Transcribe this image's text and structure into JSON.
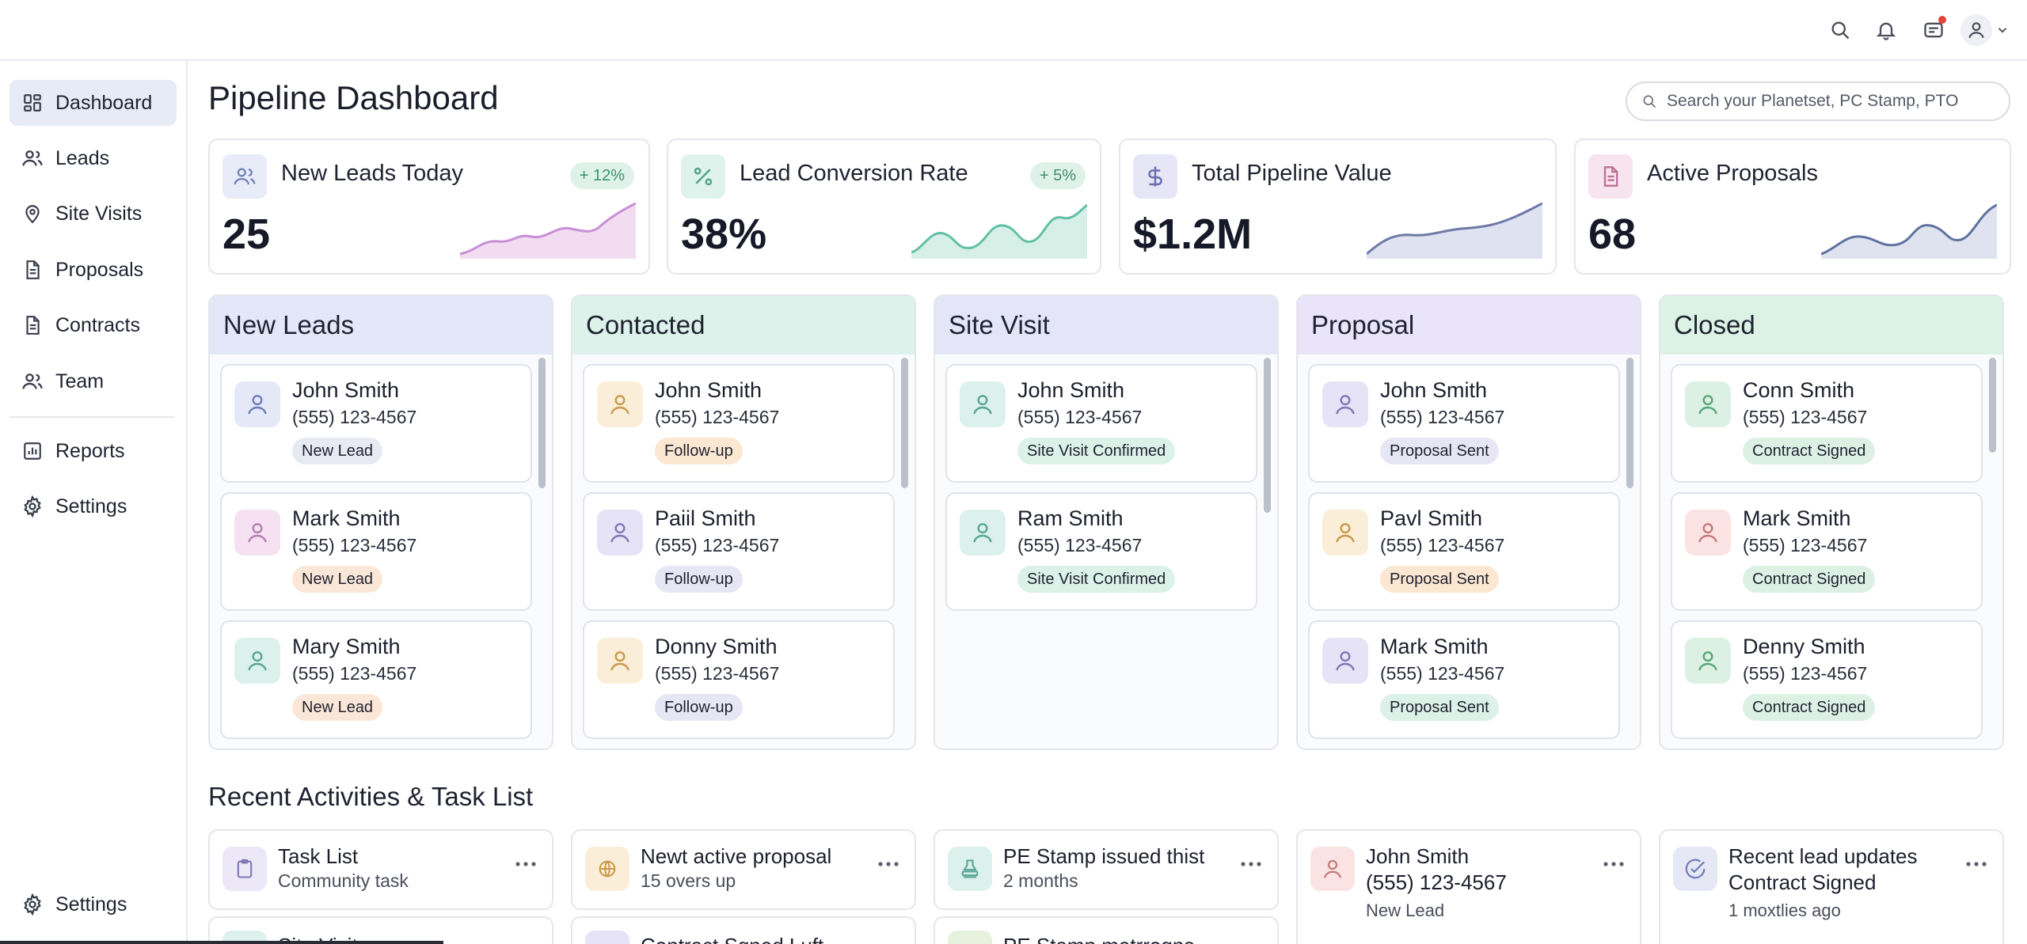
{
  "topbar": {
    "icons": [
      "search-icon",
      "bell-icon",
      "chat-icon",
      "avatar-icon",
      "chevron-down-icon"
    ]
  },
  "sidebar": {
    "items": [
      {
        "label": "Dashboard",
        "icon": "dashboard-icon",
        "active": true
      },
      {
        "label": "Leads",
        "icon": "users-icon"
      },
      {
        "label": "Site Visits",
        "icon": "map-pin-icon"
      },
      {
        "label": "Proposals",
        "icon": "document-icon"
      },
      {
        "label": "Contracts",
        "icon": "document-icon"
      },
      {
        "label": "Team",
        "icon": "users-icon"
      },
      {
        "label": "Reports",
        "icon": "bar-chart-icon"
      },
      {
        "label": "Settings",
        "icon": "gear-icon"
      }
    ],
    "footer_settings": "Settings"
  },
  "page": {
    "title": "Pipeline Dashboard",
    "search_placeholder": "Search your Planetset, PC Stamp, PTO"
  },
  "kpis": [
    {
      "label": "New Leads Today",
      "value": "25",
      "badge": "+ 12%",
      "icon": "users-icon",
      "accent": "#c98fd6",
      "icon_bg": "#e8ebf8"
    },
    {
      "label": "Lead Conversion Rate",
      "value": "38%",
      "badge": "+ 5%",
      "icon": "percent-icon",
      "accent": "#63bfa6",
      "icon_bg": "#dff3ec"
    },
    {
      "label": "Total Pipeline Value",
      "value": "$1.2M",
      "badge": "",
      "icon": "dollar-icon",
      "accent": "#8a92b8",
      "icon_bg": "#e6e6f7"
    },
    {
      "label": "Active Proposals",
      "value": "68",
      "badge": "",
      "icon": "document-icon",
      "accent": "#7f93b8",
      "icon_bg": "#f7e4ee"
    }
  ],
  "columns": [
    {
      "title": "New Leads",
      "header_bg": "#e3e8f8",
      "cards": [
        {
          "name": "John Smith",
          "phone": "(555) 123-4567",
          "status": "New Lead",
          "icon_bg": "#e4e8f7",
          "icon_color": "#6e7fb8",
          "badge_bg": "#e8eaf3"
        },
        {
          "name": "Mark Smith",
          "phone": "(555) 123-4567",
          "status": "New Lead",
          "icon_bg": "#f5e1f1",
          "icon_color": "#b47fb2",
          "badge_bg": "#fbe7d7"
        },
        {
          "name": "Mary Smith",
          "phone": "(555) 123-4567",
          "status": "New Lead",
          "icon_bg": "#dcf1ec",
          "icon_color": "#58a795",
          "badge_bg": "#fbe7d7"
        }
      ]
    },
    {
      "title": "Contacted",
      "header_bg": "#dcf2ea",
      "cards": [
        {
          "name": "John Smith",
          "phone": "(555) 123-4567",
          "status": "Follow-up",
          "icon_bg": "#fbeed8",
          "icon_color": "#c99a4a",
          "badge_bg": "#fbe7d2"
        },
        {
          "name": "Paiil Smith",
          "phone": "(555) 123-4567",
          "status": "Follow-up",
          "icon_bg": "#e6e3f7",
          "icon_color": "#7f79b6",
          "badge_bg": "#e7e6f4"
        },
        {
          "name": "Donny Smith",
          "phone": "(555) 123-4567",
          "status": "Follow-up",
          "icon_bg": "#fbeed8",
          "icon_color": "#c99a4a",
          "badge_bg": "#e7e6f4"
        }
      ]
    },
    {
      "title": "Site Visit",
      "header_bg": "#e4e6f8",
      "cards": [
        {
          "name": "John Smith",
          "phone": "(555) 123-4567",
          "status": "Site Visit Confirmed",
          "icon_bg": "#dcf1ec",
          "icon_color": "#58a795",
          "badge_bg": "#dcf1e8"
        },
        {
          "name": "Ram Smith",
          "phone": "(555) 123-4567",
          "status": "Site Visit Confirmed",
          "icon_bg": "#dcf1ec",
          "icon_color": "#58a795",
          "badge_bg": "#dcf1e8"
        }
      ]
    },
    {
      "title": "Proposal",
      "header_bg": "#e9e4f8",
      "cards": [
        {
          "name": "John Smith",
          "phone": "(555) 123-4567",
          "status": "Proposal Sent",
          "icon_bg": "#e6e3f7",
          "icon_color": "#7f79b6",
          "badge_bg": "#e7e6f4"
        },
        {
          "name": "Pavl Smith",
          "phone": "(555) 123-4567",
          "status": "Proposal Sent",
          "icon_bg": "#fbeed8",
          "icon_color": "#c99a4a",
          "badge_bg": "#fbe7d2"
        },
        {
          "name": "Mark Smith",
          "phone": "(555) 123-4567",
          "status": "Proposal Sent",
          "icon_bg": "#e6e3f7",
          "icon_color": "#7f79b6",
          "badge_bg": "#dcf1e8"
        }
      ]
    },
    {
      "title": "Closed",
      "header_bg": "#dcf2e4",
      "cards": [
        {
          "name": "Conn Smith",
          "phone": "(555) 123-4567",
          "status": "Contract Signed",
          "icon_bg": "#dcf1e4",
          "icon_color": "#58a77a",
          "badge_bg": "#dcf1e4"
        },
        {
          "name": "Mark Smith",
          "phone": "(555) 123-4567",
          "status": "Contract Signed",
          "icon_bg": "#fbe3e3",
          "icon_color": "#c47a7a",
          "badge_bg": "#dcf1e4"
        },
        {
          "name": "Denny Smith",
          "phone": "(555) 123-4567",
          "status": "Contract Signed",
          "icon_bg": "#dcf1e4",
          "icon_color": "#58a77a",
          "badge_bg": "#dcf1e4"
        }
      ]
    }
  ],
  "activities": {
    "title": "Recent Activities & Task List",
    "items": [
      {
        "line1": "Task List",
        "line2": "Community task",
        "icon": "clipboard-icon",
        "icon_bg": "#ece8f7",
        "icon_color": "#7f79b6"
      },
      {
        "line1": "Newt active proposal",
        "line2": "15 overs up",
        "icon": "box-icon",
        "icon_bg": "#fbeed8",
        "icon_color": "#c99a4a"
      },
      {
        "line1": "PE Stamp issued thist",
        "line2": "2 months",
        "icon": "stamp-icon",
        "icon_bg": "#dcf1ec",
        "icon_color": "#58a795"
      },
      {
        "line1": "John Smith",
        "line2": "(555) 123-4567",
        "line3": "New Lead",
        "icon": "user-icon",
        "icon_bg": "#fbe3e3",
        "icon_color": "#c47a7a"
      },
      {
        "line1": "Recent lead updates",
        "line2": "Contract Signed",
        "line3": "1 moxtlies ago",
        "icon": "check-circle-icon",
        "icon_bg": "#e6e8f6",
        "icon_color": "#6e7fb8"
      }
    ],
    "second_row": [
      "Site Visits",
      "Contract Sgned Luft",
      "PE Stamp metrrogns"
    ]
  }
}
